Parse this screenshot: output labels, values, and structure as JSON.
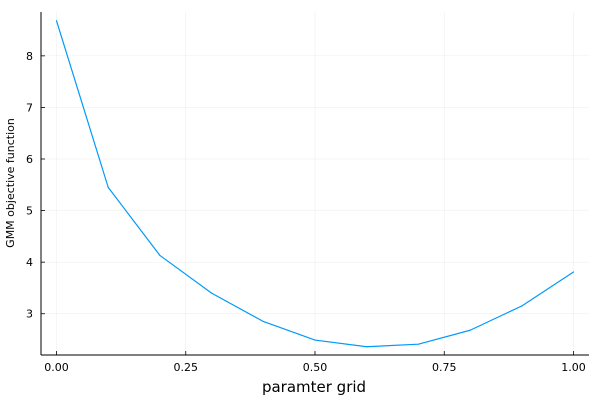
{
  "chart_data": {
    "type": "line",
    "title": "",
    "xlabel": "paramter grid",
    "ylabel": "GMM objective function",
    "xlim": [
      -0.03,
      1.03
    ],
    "ylim": [
      2.2,
      8.85
    ],
    "x_ticks": [
      0.0,
      0.25,
      0.5,
      0.75,
      1.0
    ],
    "x_tick_labels": [
      "0.00",
      "0.25",
      "0.50",
      "0.75",
      "1.00"
    ],
    "y_ticks": [
      3,
      4,
      5,
      6,
      7,
      8
    ],
    "y_tick_labels": [
      "3",
      "4",
      "5",
      "6",
      "7",
      "8"
    ],
    "grid": true,
    "legend": "none",
    "series": [
      {
        "color": "#009AFA",
        "x": [
          0.0,
          0.1,
          0.2,
          0.3,
          0.4,
          0.5,
          0.6,
          0.7,
          0.8,
          0.9,
          1.0
        ],
        "values": [
          8.68,
          5.45,
          4.13,
          3.4,
          2.85,
          2.49,
          2.36,
          2.41,
          2.68,
          3.15,
          3.81
        ]
      }
    ]
  }
}
